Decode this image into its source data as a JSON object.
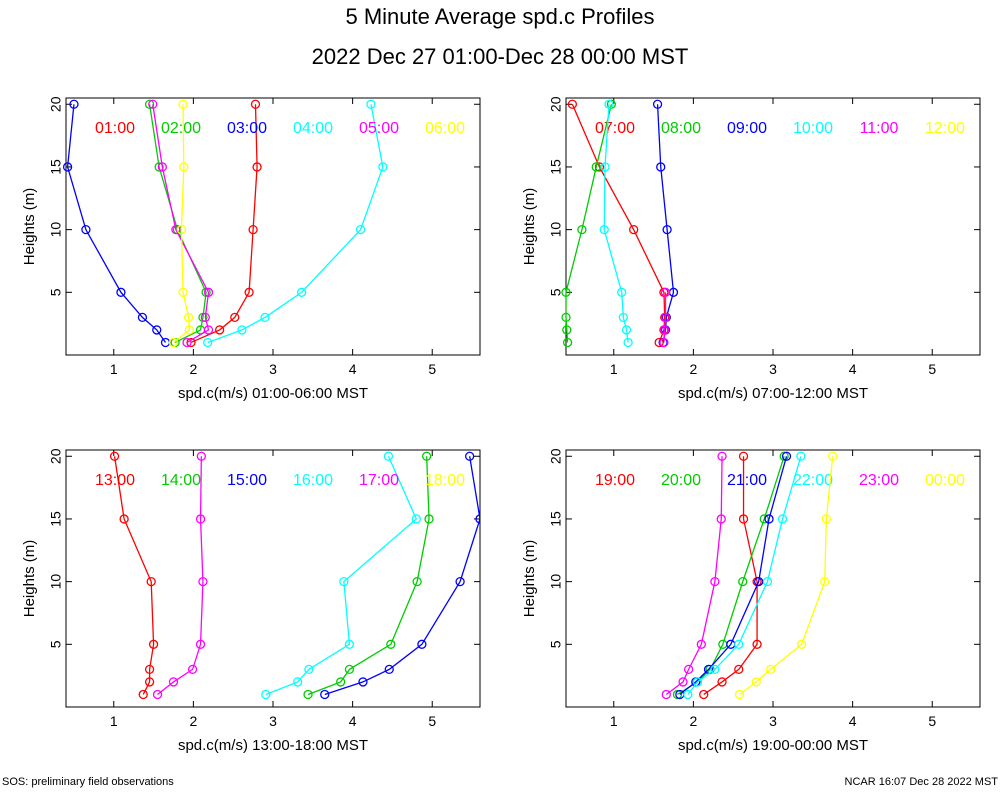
{
  "title": "5 Minute Average spd.c Profiles",
  "subtitle": "2022 Dec 27 01:00-Dec 28 00:00 MST",
  "footer_left": "SOS: preliminary field observations",
  "footer_right": "NCAR 16:07 Dec 28 2022 MST",
  "chart_data": [
    {
      "type": "line",
      "xlabel": "spd.c(m/s) 01:00-06:00 MST",
      "ylabel": "Heights (m)",
      "xlim": [
        0.4,
        5.6
      ],
      "ylim": [
        0,
        20.5
      ],
      "xticks": [
        "1",
        "2",
        "3",
        "4",
        "5"
      ],
      "yticks": [
        "5",
        "10",
        "15",
        "20"
      ],
      "heights": [
        1,
        2,
        3,
        5,
        10,
        15,
        20
      ],
      "grid": false,
      "series": [
        {
          "name": "01:00",
          "color": "#ff0000",
          "values": [
            1.97,
            2.33,
            2.52,
            2.7,
            2.75,
            2.8,
            2.78
          ]
        },
        {
          "name": "02:00",
          "color": "#00cc00",
          "values": [
            1.77,
            2.09,
            2.12,
            2.16,
            1.8,
            1.57,
            1.45
          ]
        },
        {
          "name": "03:00",
          "color": "#0000ff",
          "values": [
            1.65,
            1.54,
            1.36,
            1.09,
            0.65,
            0.42,
            0.5
          ]
        },
        {
          "name": "04:00",
          "color": "#00ffff",
          "values": [
            2.18,
            2.61,
            2.9,
            3.36,
            4.1,
            4.38,
            4.23
          ]
        },
        {
          "name": "05:00",
          "color": "#ff00ff",
          "values": [
            1.92,
            2.19,
            2.15,
            2.19,
            1.78,
            1.61,
            1.49
          ]
        },
        {
          "name": "06:00",
          "color": "#ffff00",
          "values": [
            1.75,
            1.95,
            1.94,
            1.87,
            1.85,
            1.88,
            1.87
          ]
        }
      ]
    },
    {
      "type": "line",
      "xlabel": "spd.c(m/s) 07:00-12:00 MST",
      "ylabel": "Heights (m)",
      "xlim": [
        0.4,
        5.6
      ],
      "ylim": [
        0,
        20.5
      ],
      "xticks": [
        "1",
        "2",
        "3",
        "4",
        "5"
      ],
      "yticks": [
        "5",
        "10",
        "15",
        "20"
      ],
      "heights": [
        1,
        2,
        3,
        5,
        10,
        15,
        20
      ],
      "grid": false,
      "series": [
        {
          "name": "07:00",
          "color": "#ff0000",
          "values": [
            1.57,
            1.63,
            1.64,
            1.63,
            1.25,
            0.82,
            0.48
          ]
        },
        {
          "name": "08:00",
          "color": "#00cc00",
          "values": [
            0.42,
            0.41,
            0.4,
            0.4,
            0.6,
            0.78,
            0.97
          ]
        },
        {
          "name": "09:00",
          "color": "#0000ff",
          "values": [
            1.62,
            1.65,
            1.66,
            1.75,
            1.67,
            1.59,
            1.55
          ]
        },
        {
          "name": "10:00",
          "color": "#00ffff",
          "values": [
            1.18,
            1.16,
            1.12,
            1.1,
            0.88,
            0.89,
            0.94
          ]
        },
        {
          "name": "11:00",
          "color": "#ff00ff",
          "values": [
            1.63,
            1.64,
            1.65,
            1.65
          ]
        },
        {
          "name": "12:00",
          "color": "#ffff00",
          "values": []
        }
      ]
    },
    {
      "type": "line",
      "xlabel": "spd.c(m/s) 13:00-18:00 MST",
      "ylabel": "Heights (m)",
      "xlim": [
        0.4,
        5.6
      ],
      "ylim": [
        0,
        20.5
      ],
      "xticks": [
        "1",
        "2",
        "3",
        "4",
        "5"
      ],
      "yticks": [
        "5",
        "10",
        "15",
        "20"
      ],
      "heights": [
        1,
        2,
        3,
        5,
        10,
        15,
        20
      ],
      "grid": false,
      "series": [
        {
          "name": "13:00",
          "color": "#ff0000",
          "values": [
            1.37,
            1.45,
            1.45,
            1.5,
            1.47,
            1.13,
            1.01
          ]
        },
        {
          "name": "14:00",
          "color": "#00cc00",
          "values": [
            3.44,
            3.85,
            3.96,
            4.48,
            4.81,
            4.96,
            4.93
          ]
        },
        {
          "name": "15:00",
          "color": "#0000ff",
          "values": [
            3.65,
            4.13,
            4.46,
            4.87,
            5.35,
            5.6,
            5.47
          ]
        },
        {
          "name": "16:00",
          "color": "#00ffff",
          "values": [
            2.91,
            3.31,
            3.45,
            3.96,
            3.89,
            4.8,
            4.45
          ]
        },
        {
          "name": "17:00",
          "color": "#ff00ff",
          "values": [
            1.55,
            1.75,
            1.99,
            2.09,
            2.12,
            2.09,
            2.1
          ]
        },
        {
          "name": "18:00",
          "color": "#ffff00",
          "values": []
        }
      ]
    },
    {
      "type": "line",
      "xlabel": "spd.c(m/s) 19:00-00:00 MST",
      "ylabel": "Heights (m)",
      "xlim": [
        0.4,
        5.6
      ],
      "ylim": [
        0,
        20.5
      ],
      "xticks": [
        "1",
        "2",
        "3",
        "4",
        "5"
      ],
      "yticks": [
        "5",
        "10",
        "15",
        "20"
      ],
      "heights": [
        1,
        2,
        3,
        5,
        10,
        15,
        20
      ],
      "grid": false,
      "series": [
        {
          "name": "19:00",
          "color": "#ff0000",
          "values": [
            2.13,
            2.36,
            2.57,
            2.8,
            2.8,
            2.63,
            2.63
          ]
        },
        {
          "name": "20:00",
          "color": "#00cc00",
          "values": [
            1.8,
            2.05,
            2.21,
            2.37,
            2.62,
            2.89,
            3.14
          ]
        },
        {
          "name": "21:00",
          "color": "#0000ff",
          "values": [
            1.83,
            2.03,
            2.19,
            2.47,
            2.82,
            2.95,
            3.17
          ]
        },
        {
          "name": "22:00",
          "color": "#00ffff",
          "values": [
            1.93,
            2.05,
            2.27,
            2.57,
            2.93,
            3.12,
            3.35
          ]
        },
        {
          "name": "23:00",
          "color": "#ff00ff",
          "values": [
            1.66,
            1.87,
            1.94,
            2.1,
            2.27,
            2.35,
            2.36
          ]
        },
        {
          "name": "00:00",
          "color": "#ffff00",
          "values": [
            2.58,
            2.79,
            2.97,
            3.36,
            3.65,
            3.67,
            3.75
          ]
        }
      ]
    }
  ]
}
